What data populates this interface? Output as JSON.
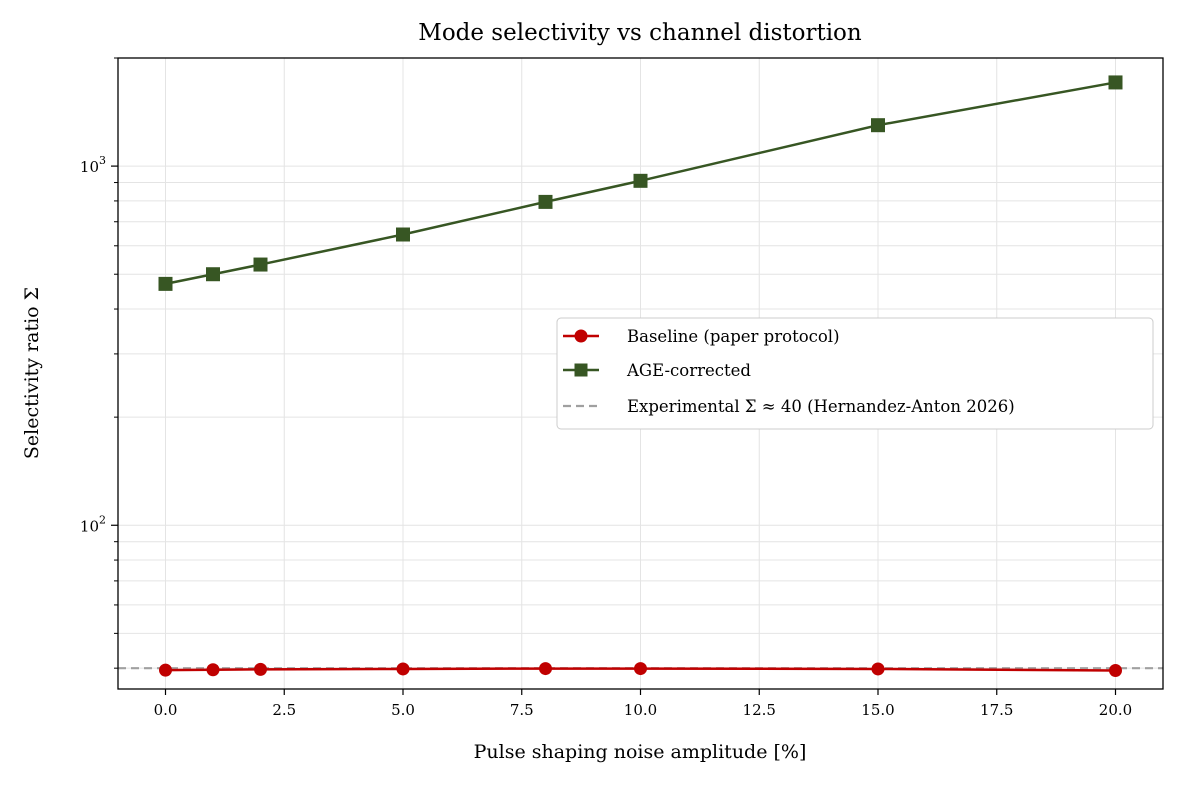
{
  "chart_data": {
    "type": "line",
    "title": "Mode selectivity vs channel distortion",
    "xlabel": "Pulse shaping noise amplitude [%]",
    "ylabel": "Selectivity ratio Σ",
    "xlim": [
      -1,
      21
    ],
    "ylim": [
      35,
      2000
    ],
    "yscale": "log",
    "grid": true,
    "legend_position": "center-right",
    "x_ticks": [
      0,
      2.5,
      5,
      7.5,
      10,
      12.5,
      15,
      17.5,
      20
    ],
    "x_tick_labels": [
      "0.0",
      "2.5",
      "5.0",
      "7.5",
      "10.0",
      "12.5",
      "15.0",
      "17.5",
      "20.0"
    ],
    "y_major_ticks": [
      {
        "value": 100,
        "base": "10",
        "exp": "2"
      },
      {
        "value": 1000,
        "base": "10",
        "exp": "3"
      }
    ],
    "x": [
      0,
      1,
      2,
      5,
      8,
      10,
      15,
      20
    ],
    "series": [
      {
        "name": "Baseline (paper protocol)",
        "color": "#c00000",
        "marker": "circle",
        "values": [
          39.5,
          39.6,
          39.7,
          39.8,
          39.9,
          39.9,
          39.8,
          39.4
        ]
      },
      {
        "name": "AGE-corrected",
        "color": "#375623",
        "marker": "square",
        "values": [
          470,
          500,
          532,
          645,
          795,
          910,
          1300,
          1710
        ]
      }
    ],
    "reference_line": {
      "name": "Experimental Σ ≈ 40 (Hernandez-Anton 2026)",
      "value": 40,
      "color": "#a0a0a0",
      "style": "dashed"
    }
  }
}
